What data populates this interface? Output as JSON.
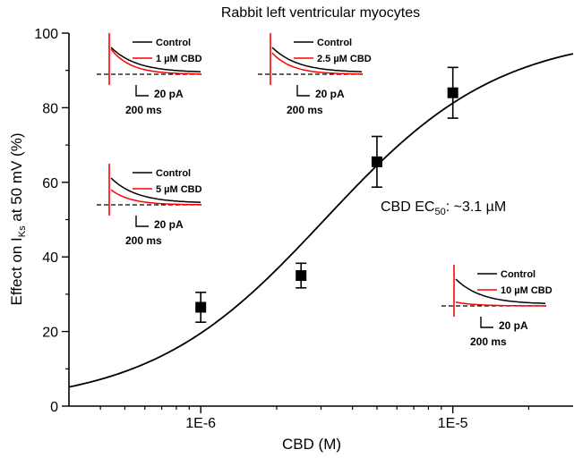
{
  "chart_data": {
    "type": "scatter",
    "title": "Rabbit left ventricular myocytes",
    "xlabel": "CBD (M)",
    "ylabel": {
      "prefix": "Effect on I",
      "sub": "Ks",
      "suffix": " at 50 mV (%)"
    },
    "xscale": "log",
    "xlim": [
      3e-07,
      3e-05
    ],
    "ylim": [
      0,
      100
    ],
    "yticks": [
      0,
      20,
      40,
      60,
      80,
      100
    ],
    "xticks": [
      {
        "value": 1e-06,
        "label": "1E-6"
      },
      {
        "value": 1e-05,
        "label": "1E-5"
      }
    ],
    "series": [
      {
        "marker": "square",
        "points": [
          {
            "x": 1e-06,
            "y": 26.5,
            "err": 4.0
          },
          {
            "x": 2.5e-06,
            "y": 35.0,
            "err": 3.3
          },
          {
            "x": 5e-06,
            "y": 65.5,
            "err": 6.8
          },
          {
            "x": 1e-05,
            "y": 84.0,
            "err": 6.8
          }
        ]
      }
    ],
    "fit": {
      "type": "hill",
      "ec50": 3.1e-06,
      "hill": 1.25,
      "max": 100
    },
    "annotation": {
      "prefix": "CBD EC",
      "sub": "50",
      "suffix": ": ~3.1 µM"
    },
    "insets": [
      {
        "control": "Control",
        "drug": "1 µM CBD",
        "scale_current": "20 pA",
        "scale_time": "200 ms"
      },
      {
        "control": "Control",
        "drug": "2.5 µM CBD",
        "scale_current": "20 pA",
        "scale_time": "200 ms"
      },
      {
        "control": "Control",
        "drug": "5 µM CBD",
        "scale_current": "20 pA",
        "scale_time": "200 ms"
      },
      {
        "control": "Control",
        "drug": "10 µM CBD",
        "scale_current": "20 pA",
        "scale_time": "200 ms"
      }
    ],
    "colors": {
      "control": "#000000",
      "drug": "#ff0000"
    }
  }
}
